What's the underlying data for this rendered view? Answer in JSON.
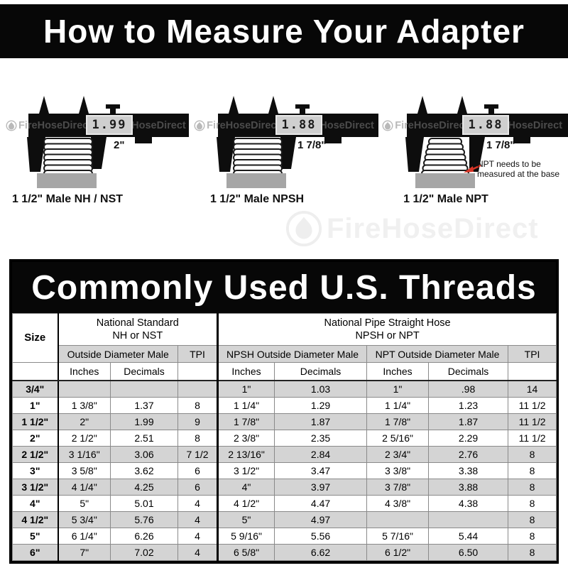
{
  "page": {
    "title_banner": "How to Measure Your Adapter"
  },
  "watermark": {
    "brand": "FireHoseDirect"
  },
  "diagrams": [
    {
      "reading": "1.99",
      "dimension": "2\"",
      "caption": "1 1/2\" Male NH / NST"
    },
    {
      "reading": "1.88",
      "dimension": "1 7/8\"",
      "caption": "1 1/2\" Male NPSH"
    },
    {
      "reading": "1.88",
      "dimension": "1 7/8\"",
      "caption": "1 1/2\" Male NPT",
      "note_line1": "NPT needs to be",
      "note_line2": "measured at the base"
    }
  ],
  "table": {
    "title": "Commonly Used U.S. Threads",
    "size_label": "Size",
    "group_nh_line1": "National Standard",
    "group_nh_line2": "NH or NST",
    "group_np_line1": "National Pipe Straight Hose",
    "group_np_line2": "NPSH or NPT",
    "sub_odm": "Outside Diameter Male",
    "sub_tpi": "TPI",
    "sub_npsh_odm": "NPSH Outside Diameter Male",
    "sub_npt_odm": "NPT Outside Diameter Male",
    "sub_tpi_right": "TPI",
    "col_inches": "Inches",
    "col_decimals": "Decimals",
    "rows": [
      [
        "3/4\"",
        "",
        "",
        "",
        "1\"",
        "1.03",
        "1\"",
        ".98",
        "14"
      ],
      [
        "1\"",
        "1 3/8\"",
        "1.37",
        "8",
        "1 1/4\"",
        "1.29",
        "1 1/4\"",
        "1.23",
        "11 1/2"
      ],
      [
        "1 1/2\"",
        "2\"",
        "1.99",
        "9",
        "1 7/8\"",
        "1.87",
        "1 7/8\"",
        "1.87",
        "11 1/2"
      ],
      [
        "2\"",
        "2 1/2\"",
        "2.51",
        "8",
        "2 3/8\"",
        "2.35",
        "2 5/16\"",
        "2.29",
        "11 1/2"
      ],
      [
        "2 1/2\"",
        "3 1/16\"",
        "3.06",
        "7 1/2",
        "2 13/16\"",
        "2.84",
        "2 3/4\"",
        "2.76",
        "8"
      ],
      [
        "3\"",
        "3 5/8\"",
        "3.62",
        "6",
        "3 1/2\"",
        "3.47",
        "3 3/8\"",
        "3.38",
        "8"
      ],
      [
        "3 1/2\"",
        "4 1/4\"",
        "4.25",
        "6",
        "4\"",
        "3.97",
        "3 7/8\"",
        "3.88",
        "8"
      ],
      [
        "4\"",
        "5\"",
        "5.01",
        "4",
        "4 1/2\"",
        "4.47",
        "4 3/8\"",
        "4.38",
        "8"
      ],
      [
        "4 1/2\"",
        "5 3/4\"",
        "5.76",
        "4",
        "5\"",
        "4.97",
        "",
        "",
        "8"
      ],
      [
        "5\"",
        "6 1/4\"",
        "6.26",
        "4",
        "5 9/16\"",
        "5.56",
        "5 7/16\"",
        "5.44",
        "8"
      ],
      [
        "6\"",
        "7\"",
        "7.02",
        "4",
        "6 5/8\"",
        "6.62",
        "6 1/2\"",
        "6.50",
        "8"
      ]
    ]
  }
}
